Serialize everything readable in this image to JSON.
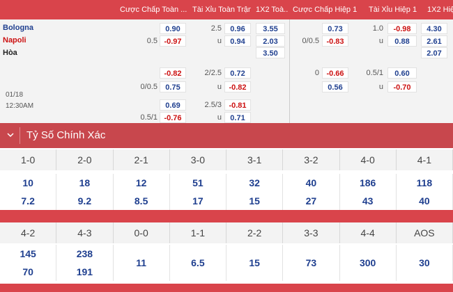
{
  "header": {
    "col1": "Cược Chấp Toàn ...",
    "col2": "Tài Xỉu Toàn Trận",
    "col3": "1X2 Toà...",
    "col4": "Cược Chấp Hiệp 1",
    "col5": "Tài Xỉu Hiệp 1",
    "col6": "1X2 Hiệ"
  },
  "match": {
    "home": "Bologna",
    "away": "Napoli",
    "draw": "Hòa",
    "date": "01/18",
    "time": "12:30AM"
  },
  "odds_rows": [
    {
      "hc_line": "",
      "hc_home": "0.90",
      "ou_line": "2.5",
      "ou_over": "0.96",
      "x12": "3.55",
      "h1_line": "",
      "h1_home": "0.73",
      "h1_ou_line": "1.0",
      "h1_over": "-0.98",
      "h1_x12": "4.30"
    },
    {
      "hc_line": "0.5",
      "hc_home": "-0.97",
      "ou_line": "u",
      "ou_over": "0.94",
      "x12": "2.03",
      "h1_line": "0/0.5",
      "h1_home": "-0.83",
      "h1_ou_line": "u",
      "h1_over": "0.88",
      "h1_x12": "2.61"
    },
    {
      "hc_line": "",
      "hc_home": "",
      "ou_line": "",
      "ou_over": "",
      "x12": "3.50",
      "h1_line": "",
      "h1_home": "",
      "h1_ou_line": "",
      "h1_over": "",
      "h1_x12": "2.07"
    },
    {
      "hc_line": "",
      "hc_home": "-0.82",
      "ou_line": "2/2.5",
      "ou_over": "0.72",
      "x12": "",
      "h1_line": "0",
      "h1_home": "-0.66",
      "h1_ou_line": "0.5/1",
      "h1_over": "0.60",
      "h1_x12": ""
    },
    {
      "hc_line": "0/0.5",
      "hc_home": "0.75",
      "ou_line": "u",
      "ou_over": "-0.82",
      "x12": "",
      "h1_line": "",
      "h1_home": "0.56",
      "h1_ou_line": "u",
      "h1_over": "-0.70",
      "h1_x12": ""
    },
    {
      "hc_line": "",
      "hc_home": "0.69",
      "ou_line": "2.5/3",
      "ou_over": "-0.81",
      "x12": "",
      "h1_line": "",
      "h1_home": "",
      "h1_ou_line": "",
      "h1_over": "",
      "h1_x12": ""
    },
    {
      "hc_line": "0.5/1",
      "hc_home": "-0.76",
      "ou_line": "u",
      "ou_over": "0.71",
      "x12": "",
      "h1_line": "",
      "h1_home": "",
      "h1_ou_line": "",
      "h1_over": "",
      "h1_x12": ""
    }
  ],
  "section": {
    "title": "Tỷ Số Chính Xác",
    "icon": "chevron-down-icon"
  },
  "scores_1": {
    "labels": [
      "1-0",
      "2-0",
      "2-1",
      "3-0",
      "3-1",
      "3-2",
      "4-0",
      "4-1"
    ],
    "home": [
      "10",
      "18",
      "12",
      "51",
      "32",
      "40",
      "186",
      "118"
    ],
    "away": [
      "7.2",
      "9.2",
      "8.5",
      "17",
      "15",
      "27",
      "43",
      "40"
    ]
  },
  "scores_2": {
    "labels": [
      "4-2",
      "4-3",
      "0-0",
      "1-1",
      "2-2",
      "3-3",
      "4-4",
      "AOS"
    ],
    "home": [
      "145",
      "238",
      "",
      "",
      "",
      "",
      "",
      ""
    ],
    "away": [
      "70",
      "191",
      "",
      "",
      "",
      "",
      "",
      ""
    ],
    "single": [
      "",
      "",
      "11",
      "6.5",
      "15",
      "73",
      "300",
      "30"
    ]
  },
  "colors": {
    "accent": "#d9444b",
    "positive": "#1f3f8f",
    "negative": "#cc1111"
  }
}
